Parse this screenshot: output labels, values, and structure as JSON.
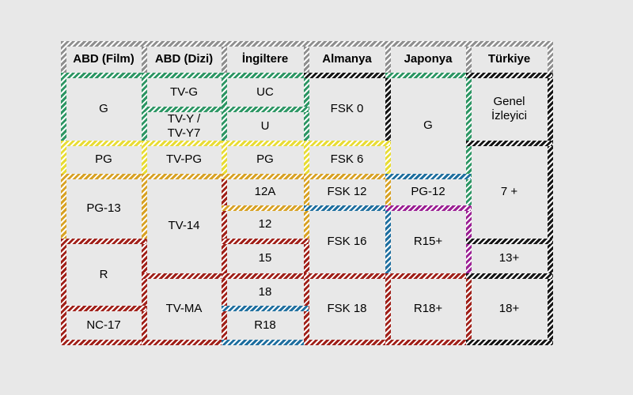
{
  "page": {
    "background": "#e8e8e8",
    "text_color": "#000000"
  },
  "palette": {
    "gray": "#8f8f8f",
    "green": "#2d9664",
    "yellow": "#e8dc35",
    "gold": "#d8a225",
    "red": "#a02019",
    "blue": "#1f6f9f",
    "magenta": "#9b1f93",
    "black": "#161616",
    "stripe_white": "#ffffff"
  },
  "chart_data": {
    "type": "table",
    "description": "Comparison table of content rating systems by country (Turkish labels)",
    "row_lines": 9,
    "columns": [
      {
        "header": "ABD (Film)",
        "cells": [
          {
            "label": "G",
            "row_start": 1,
            "row_end": 3,
            "level": "green"
          },
          {
            "label": "PG",
            "row_start": 3,
            "row_end": 4,
            "level": "yellow"
          },
          {
            "label": "PG-13",
            "row_start": 4,
            "row_end": 6,
            "level": "gold"
          },
          {
            "label": "R",
            "row_start": 6,
            "row_end": 8,
            "level": "red"
          },
          {
            "label": "NC-17",
            "row_start": 8,
            "row_end": 9,
            "level": "red"
          }
        ]
      },
      {
        "header": "ABD (Dizi)",
        "cells": [
          {
            "label": "TV-G",
            "row_start": 1,
            "row_end": 2,
            "level": "green"
          },
          {
            "label": "TV-Y /\nTV-Y7",
            "row_start": 2,
            "row_end": 3,
            "level": "green"
          },
          {
            "label": "TV-PG",
            "row_start": 3,
            "row_end": 4,
            "level": "yellow"
          },
          {
            "label": "TV-14",
            "row_start": 4,
            "row_end": 7,
            "level": "gold"
          },
          {
            "label": "TV-MA",
            "row_start": 7,
            "row_end": 9,
            "level": "red"
          }
        ]
      },
      {
        "header": "İngiltere",
        "cells": [
          {
            "label": "UC",
            "row_start": 1,
            "row_end": 2,
            "level": "green"
          },
          {
            "label": "U",
            "row_start": 2,
            "row_end": 3,
            "level": "green"
          },
          {
            "label": "PG",
            "row_start": 3,
            "row_end": 4,
            "level": "yellow"
          },
          {
            "label": "12A",
            "row_start": 4,
            "row_end": 5,
            "level": "gold"
          },
          {
            "label": "12",
            "row_start": 5,
            "row_end": 6,
            "level": "gold"
          },
          {
            "label": "15",
            "row_start": 6,
            "row_end": 7,
            "level": "red"
          },
          {
            "label": "18",
            "row_start": 7,
            "row_end": 8,
            "level": "red"
          },
          {
            "label": "R18",
            "row_start": 8,
            "row_end": 9,
            "level": "blue"
          }
        ]
      },
      {
        "header": "Almanya",
        "cells": [
          {
            "label": "FSK 0",
            "row_start": 1,
            "row_end": 3,
            "level": "black"
          },
          {
            "label": "FSK 6",
            "row_start": 3,
            "row_end": 4,
            "level": "yellow"
          },
          {
            "label": "FSK 12",
            "row_start": 4,
            "row_end": 5,
            "level": "gold"
          },
          {
            "label": "FSK 16",
            "row_start": 5,
            "row_end": 7,
            "level": "blue"
          },
          {
            "label": "FSK 18",
            "row_start": 7,
            "row_end": 9,
            "level": "red"
          }
        ]
      },
      {
        "header": "Japonya",
        "cells": [
          {
            "label": "G",
            "row_start": 1,
            "row_end": 4,
            "level": "green"
          },
          {
            "label": "PG-12",
            "row_start": 4,
            "row_end": 5,
            "level": "blue"
          },
          {
            "label": "R15+",
            "row_start": 5,
            "row_end": 7,
            "level": "magenta"
          },
          {
            "label": "R18+",
            "row_start": 7,
            "row_end": 9,
            "level": "red"
          }
        ]
      },
      {
        "header": "Türkiye",
        "cells": [
          {
            "label": "Genel\nİzleyici",
            "row_start": 1,
            "row_end": 3,
            "level": "black"
          },
          {
            "label": "7 +",
            "row_start": 3,
            "row_end": 6,
            "level": "black"
          },
          {
            "label": "13+",
            "row_start": 6,
            "row_end": 7,
            "level": "black"
          },
          {
            "label": "18+",
            "row_start": 7,
            "row_end": 9,
            "level": "black"
          }
        ]
      }
    ],
    "border_segments": {
      "horizontal": [
        {
          "line": 0,
          "from": 0,
          "to": 6,
          "color": "gray"
        },
        {
          "line": 1,
          "from": 0,
          "to": 1,
          "color": "green"
        },
        {
          "line": 1,
          "from": 1,
          "to": 2,
          "color": "green"
        },
        {
          "line": 1,
          "from": 2,
          "to": 3,
          "color": "green"
        },
        {
          "line": 1,
          "from": 3,
          "to": 4,
          "color": "black"
        },
        {
          "line": 1,
          "from": 4,
          "to": 5,
          "color": "green"
        },
        {
          "line": 1,
          "from": 5,
          "to": 6,
          "color": "black"
        },
        {
          "line": 2,
          "from": 1,
          "to": 2,
          "color": "green"
        },
        {
          "line": 2,
          "from": 2,
          "to": 3,
          "color": "green"
        },
        {
          "line": 3,
          "from": 0,
          "to": 1,
          "color": "yellow"
        },
        {
          "line": 3,
          "from": 1,
          "to": 2,
          "color": "yellow"
        },
        {
          "line": 3,
          "from": 2,
          "to": 3,
          "color": "yellow"
        },
        {
          "line": 3,
          "from": 3,
          "to": 4,
          "color": "yellow"
        },
        {
          "line": 3,
          "from": 5,
          "to": 6,
          "color": "black"
        },
        {
          "line": 4,
          "from": 0,
          "to": 1,
          "color": "gold"
        },
        {
          "line": 4,
          "from": 1,
          "to": 2,
          "color": "gold"
        },
        {
          "line": 4,
          "from": 2,
          "to": 3,
          "color": "gold"
        },
        {
          "line": 4,
          "from": 3,
          "to": 4,
          "color": "gold"
        },
        {
          "line": 4,
          "from": 4,
          "to": 5,
          "color": "blue"
        },
        {
          "line": 5,
          "from": 2,
          "to": 3,
          "color": "gold"
        },
        {
          "line": 5,
          "from": 3,
          "to": 4,
          "color": "blue"
        },
        {
          "line": 5,
          "from": 4,
          "to": 5,
          "color": "magenta"
        },
        {
          "line": 6,
          "from": 0,
          "to": 1,
          "color": "red"
        },
        {
          "line": 6,
          "from": 2,
          "to": 3,
          "color": "red"
        },
        {
          "line": 6,
          "from": 5,
          "to": 6,
          "color": "black"
        },
        {
          "line": 7,
          "from": 1,
          "to": 2,
          "color": "red"
        },
        {
          "line": 7,
          "from": 2,
          "to": 3,
          "color": "red"
        },
        {
          "line": 7,
          "from": 3,
          "to": 4,
          "color": "red"
        },
        {
          "line": 7,
          "from": 4,
          "to": 5,
          "color": "red"
        },
        {
          "line": 7,
          "from": 5,
          "to": 6,
          "color": "black"
        },
        {
          "line": 8,
          "from": 0,
          "to": 1,
          "color": "red"
        },
        {
          "line": 8,
          "from": 2,
          "to": 3,
          "color": "blue"
        },
        {
          "line": 9,
          "from": 0,
          "to": 1,
          "color": "red"
        },
        {
          "line": 9,
          "from": 1,
          "to": 2,
          "color": "red"
        },
        {
          "line": 9,
          "from": 2,
          "to": 3,
          "color": "blue"
        },
        {
          "line": 9,
          "from": 3,
          "to": 4,
          "color": "red"
        },
        {
          "line": 9,
          "from": 4,
          "to": 5,
          "color": "red"
        },
        {
          "line": 9,
          "from": 5,
          "to": 6,
          "color": "black"
        }
      ],
      "vertical": [
        {
          "line": 0,
          "from": 0,
          "to": 1,
          "color": "gray"
        },
        {
          "line": 1,
          "from": 0,
          "to": 1,
          "color": "gray"
        },
        {
          "line": 2,
          "from": 0,
          "to": 1,
          "color": "gray"
        },
        {
          "line": 3,
          "from": 0,
          "to": 1,
          "color": "gray"
        },
        {
          "line": 4,
          "from": 0,
          "to": 1,
          "color": "gray"
        },
        {
          "line": 5,
          "from": 0,
          "to": 1,
          "color": "gray"
        },
        {
          "line": 6,
          "from": 0,
          "to": 1,
          "color": "gray"
        },
        {
          "line": 0,
          "from": 1,
          "to": 3,
          "color": "green"
        },
        {
          "line": 0,
          "from": 3,
          "to": 4,
          "color": "yellow"
        },
        {
          "line": 0,
          "from": 4,
          "to": 6,
          "color": "gold"
        },
        {
          "line": 0,
          "from": 6,
          "to": 9,
          "color": "red"
        },
        {
          "line": 1,
          "from": 1,
          "to": 3,
          "color": "green"
        },
        {
          "line": 1,
          "from": 3,
          "to": 4,
          "color": "yellow"
        },
        {
          "line": 1,
          "from": 4,
          "to": 6,
          "color": "gold"
        },
        {
          "line": 1,
          "from": 6,
          "to": 9,
          "color": "red"
        },
        {
          "line": 2,
          "from": 1,
          "to": 3,
          "color": "green"
        },
        {
          "line": 2,
          "from": 3,
          "to": 4,
          "color": "yellow"
        },
        {
          "line": 2,
          "from": 4,
          "to": 9,
          "color": "red"
        },
        {
          "line": 3,
          "from": 1,
          "to": 3,
          "color": "green"
        },
        {
          "line": 3,
          "from": 3,
          "to": 4,
          "color": "yellow"
        },
        {
          "line": 3,
          "from": 4,
          "to": 6,
          "color": "gold"
        },
        {
          "line": 3,
          "from": 6,
          "to": 9,
          "color": "red"
        },
        {
          "line": 4,
          "from": 1,
          "to": 3,
          "color": "black"
        },
        {
          "line": 4,
          "from": 3,
          "to": 4,
          "color": "yellow"
        },
        {
          "line": 4,
          "from": 4,
          "to": 5,
          "color": "gold"
        },
        {
          "line": 4,
          "from": 5,
          "to": 7,
          "color": "blue"
        },
        {
          "line": 4,
          "from": 7,
          "to": 9,
          "color": "red"
        },
        {
          "line": 5,
          "from": 1,
          "to": 5,
          "color": "green"
        },
        {
          "line": 5,
          "from": 5,
          "to": 7,
          "color": "magenta"
        },
        {
          "line": 5,
          "from": 7,
          "to": 9,
          "color": "red"
        },
        {
          "line": 6,
          "from": 1,
          "to": 9,
          "color": "black"
        }
      ]
    }
  }
}
